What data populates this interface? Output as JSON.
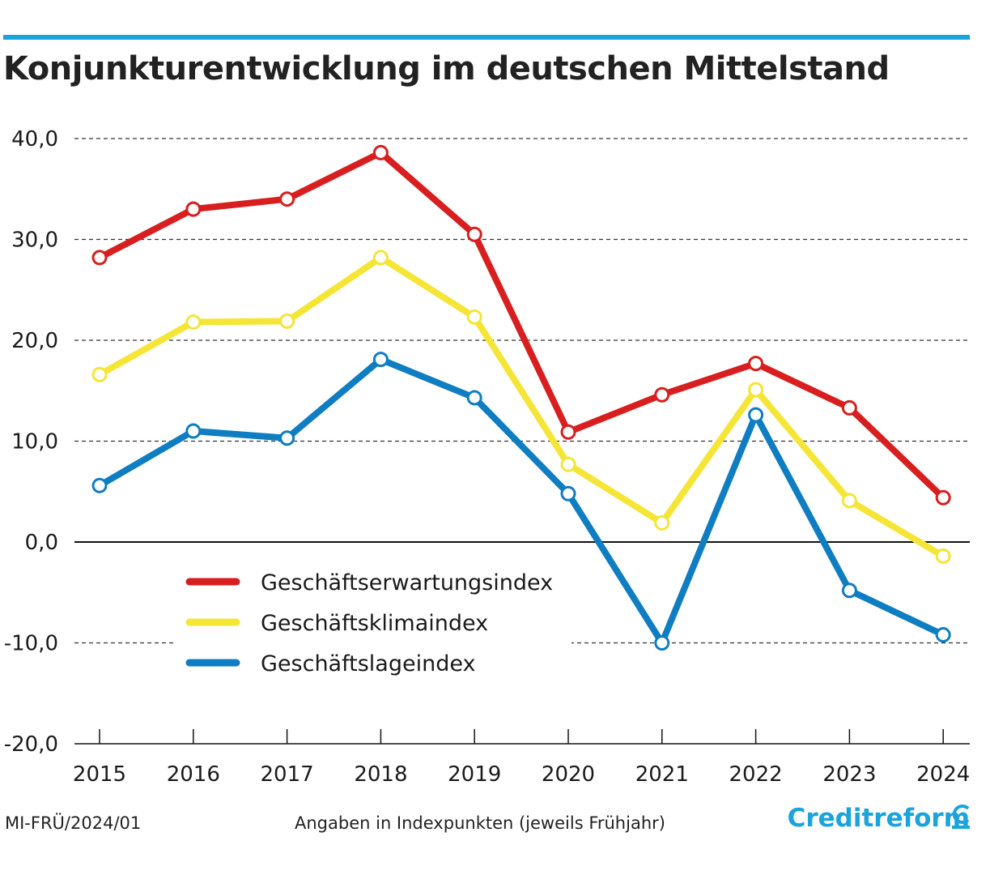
{
  "title": "Konjunkturentwicklung im deutschen Mittelstand",
  "footer": {
    "code": "MI-FRÜ/2024/01",
    "note": "Angaben in Indexpunkten (jeweils Frühjahr)",
    "brand": "Creditreform"
  },
  "colors": {
    "accent": "#1aa3dc",
    "expectation": "#d81e1e",
    "climate": "#f4e536",
    "situation": "#0f7dc2"
  },
  "chart_data": {
    "type": "line",
    "title": "Konjunkturentwicklung im deutschen Mittelstand",
    "xlabel": "",
    "ylabel": "",
    "x": [
      "2015",
      "2016",
      "2017",
      "2018",
      "2019",
      "2020",
      "2021",
      "2022",
      "2023",
      "2024"
    ],
    "ylim": [
      -20,
      40
    ],
    "yticks": [
      "40,0",
      "30,0",
      "20,0",
      "10,0",
      "0,0",
      "-10,0",
      "-20,0"
    ],
    "grid": "horizontal dashed",
    "legend_position": "bottom-left",
    "series": [
      {
        "name": "Geschäftserwartungsindex",
        "color": "#d81e1e",
        "values": [
          28.2,
          33.0,
          34.0,
          38.6,
          30.5,
          10.9,
          14.6,
          17.7,
          13.3,
          4.4
        ]
      },
      {
        "name": "Geschäftsklimaindex",
        "color": "#f4e536",
        "values": [
          16.6,
          21.8,
          21.9,
          28.2,
          22.3,
          7.7,
          1.9,
          15.1,
          4.1,
          -1.4
        ]
      },
      {
        "name": "Geschäftslageindex",
        "color": "#0f7dc2",
        "values": [
          5.6,
          11.0,
          10.3,
          18.1,
          14.3,
          4.8,
          -10.0,
          12.6,
          -4.8,
          -9.2
        ]
      }
    ]
  }
}
